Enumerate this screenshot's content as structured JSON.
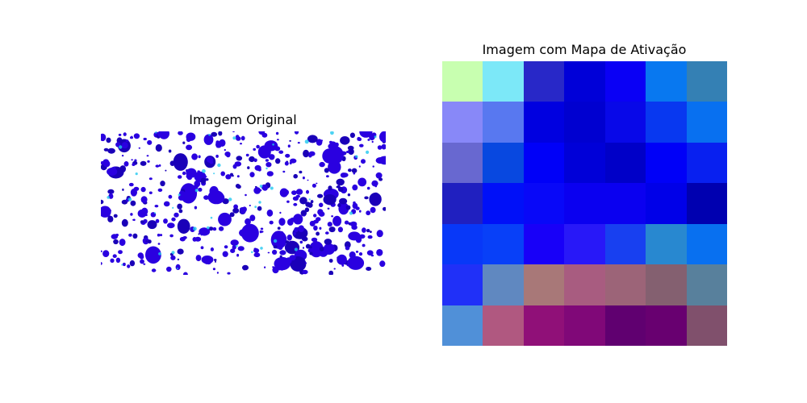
{
  "chart_data": [
    {
      "type": "image",
      "title": "Imagem Original",
      "palette": {
        "background": "#ffffff",
        "blob": "#2a00e0",
        "blob_dark": "#1a00b8",
        "highlight": "#22c8f0"
      }
    },
    {
      "type": "heatmap",
      "title": "Imagem com Mapa de Ativação",
      "rows": 7,
      "cols": 7,
      "cells": [
        [
          "#c8ffb0",
          "#7ce8f8",
          "#2828c8",
          "#0000d8",
          "#0a00f5",
          "#0878f0",
          "#3480b4"
        ],
        [
          "#8888f8",
          "#5878f0",
          "#0000e0",
          "#0000d0",
          "#0808e8",
          "#0838f0",
          "#0870f0"
        ],
        [
          "#6868d0",
          "#0848e0",
          "#0000f8",
          "#0000d8",
          "#0000c8",
          "#0000f8",
          "#0820f0"
        ],
        [
          "#2020c0",
          "#0010f8",
          "#0808f8",
          "#0a00f0",
          "#0a00f0",
          "#0000e8",
          "#0000b0"
        ],
        [
          "#0838f8",
          "#0840f8",
          "#1800f8",
          "#2818f8",
          "#1840f0",
          "#2888d0",
          "#0870f0"
        ],
        [
          "#2030f8",
          "#6088c0",
          "#a87878",
          "#a85c80",
          "#9c6478",
          "#846070",
          "#58809c"
        ],
        [
          "#5090d8",
          "#b05880",
          "#901078",
          "#800878",
          "#600070",
          "#680070",
          "#80506c"
        ]
      ]
    }
  ]
}
